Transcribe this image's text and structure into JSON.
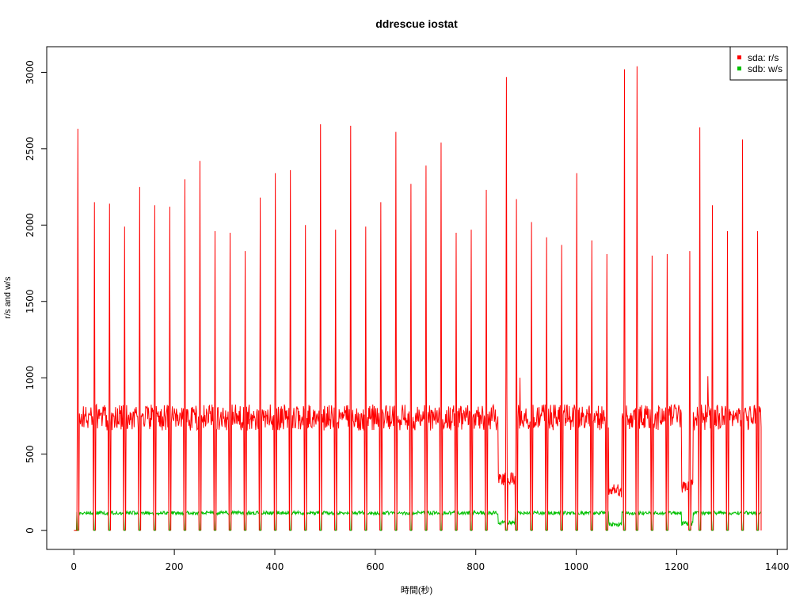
{
  "chart_data": {
    "type": "line",
    "title": "ddrescue iostat",
    "xlabel": "時間(秒)",
    "ylabel": "r/s and w/s",
    "xlim": [
      -54,
      1420
    ],
    "ylim": [
      -124,
      3168
    ],
    "x_ticks": [
      0,
      200,
      400,
      600,
      800,
      1000,
      1200,
      1400
    ],
    "y_ticks": [
      0,
      500,
      1000,
      1500,
      2000,
      2500,
      3000
    ],
    "x_tick_labels": [
      "0",
      "200",
      "400",
      "600",
      "800",
      "1000",
      "1200",
      "1400"
    ],
    "y_tick_labels": [
      "0",
      "500",
      "1000",
      "1500",
      "2000",
      "2500",
      "3000"
    ],
    "grid": false,
    "legend_position": "top-right",
    "x_start": 2,
    "x_end": 1368,
    "series": [
      {
        "name": "sda: r/s",
        "color": "#ff0000",
        "baseline": 740,
        "spike_x": [
          8,
          41,
          71,
          101,
          131,
          161,
          191,
          221,
          251,
          281,
          311,
          341,
          371,
          401,
          431,
          461,
          491,
          521,
          551,
          581,
          611,
          641,
          671,
          701,
          731,
          761,
          791,
          821,
          861,
          881,
          911,
          941,
          971,
          1001,
          1031,
          1061,
          1096,
          1121,
          1151,
          1181,
          1226,
          1246,
          1271,
          1301,
          1331,
          1361
        ],
        "spike_values": [
          2630,
          2150,
          2140,
          1990,
          2250,
          2130,
          2120,
          2300,
          2420,
          1960,
          1950,
          1830,
          2180,
          2340,
          2360,
          2000,
          2660,
          1970,
          2650,
          1990,
          2150,
          2610,
          2270,
          2390,
          2540,
          1950,
          1970,
          2230,
          2970,
          2170,
          2020,
          1920,
          1870,
          2340,
          1900,
          1810,
          3020,
          3040,
          1800,
          1810,
          1830,
          2640,
          2130,
          1960,
          2560,
          1960
        ],
        "low_segments": [
          {
            "x": [
              845,
              878
            ],
            "value": 340
          },
          {
            "x": [
              1065,
              1090
            ],
            "value": 260
          },
          {
            "x": [
              1210,
              1232
            ],
            "value": 290
          }
        ],
        "secondary_peaks": [
          {
            "x": 6,
            "value": 1220
          },
          {
            "x": 888,
            "value": 1000
          },
          {
            "x": 1122,
            "value": 870
          },
          {
            "x": 1262,
            "value": 1010
          }
        ]
      },
      {
        "name": "sdb: w/s",
        "color": "#00c000",
        "baseline": 115,
        "low_segments": [
          {
            "x": [
              845,
              878
            ],
            "value": 50
          },
          {
            "x": [
              1065,
              1090
            ],
            "value": 40
          },
          {
            "x": [
              1210,
              1232
            ],
            "value": 45
          }
        ]
      }
    ]
  }
}
